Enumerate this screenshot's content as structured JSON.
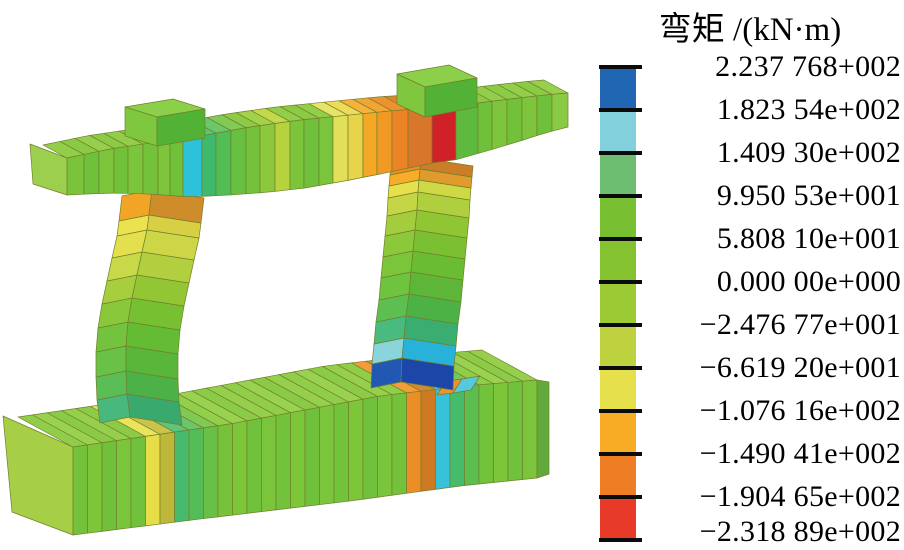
{
  "legend": {
    "title": "弯矩 /(kN·m)",
    "values": [
      "2.237 768+002",
      "1.823 54e+002",
      "1.409 30e+002",
      "9.950 53e+001",
      "5.808 10e+001",
      "0.000 00e+000",
      "−2.476 77e+001",
      "−6.619 20e+001",
      "−1.076 16e+002",
      "−1.490 41e+002",
      "−1.904 65e+002",
      "−2.318 89e+002"
    ],
    "band_colors": [
      "#2166b2",
      "#82d0dc",
      "#6ebe72",
      "#78c031",
      "#84c32f",
      "#9cca35",
      "#bdd23e",
      "#e6e04c",
      "#f8ab25",
      "#ef7d24",
      "#e83a28"
    ]
  },
  "chart_data": {
    "type": "heatmap",
    "title": "弯矩 /(kN·m)",
    "quantity": "弯矩",
    "unit": "kN·m",
    "figure": "3D finite-element frame model (foundation beam, two columns, top beam, two stub columns) contoured by bending moment",
    "colorbar": {
      "orientation": "vertical",
      "position": "right",
      "tick_labels": [
        "2.237 768+002",
        "1.823 54e+002",
        "1.409 30e+002",
        "9.950 53e+001",
        "5.808 10e+001",
        "0.000 00e+000",
        "−2.476 77e+001",
        "−6.619 20e+001",
        "−1.076 16e+002",
        "−1.490 41e+002",
        "−1.904 65e+002",
        "−2.318 89e+002"
      ],
      "tick_values": [
        223.7768,
        182.354,
        140.93,
        99.5053,
        58.081,
        0.0,
        -24.7677,
        -66.192,
        -107.616,
        -149.041,
        -190.465,
        -231.889
      ],
      "band_colors": [
        "#2166b2",
        "#82d0dc",
        "#6ebe72",
        "#78c031",
        "#84c32f",
        "#9cca35",
        "#bdd23e",
        "#e6e04c",
        "#f8ab25",
        "#ef7d24",
        "#e83a28"
      ]
    }
  },
  "model": {
    "edge_color": "#71802c",
    "foundation": {
      "end_cap_left": "#a6ce47",
      "end_strip_right": "#61aa3c",
      "top_patch_orange": "#ec9330",
      "top_patch_cyan": "#55cade",
      "front": [
        "#74c23c",
        "#7dc63a",
        "#6fc03a",
        "#7bc53c",
        "#70c13b",
        "#e6dd49",
        "#bdb73a",
        "#48ba6c",
        "#55bd58",
        "#69c046",
        "#76c33b",
        "#7dc63a",
        "#70c13b",
        "#7bc53c",
        "#72c23c",
        "#7dc63a",
        "#6fc03a",
        "#7bc53c",
        "#73c23c",
        "#7dc63a",
        "#70c13b",
        "#7bc53c",
        "#74c23c",
        "#ec8e26",
        "#cd7a22",
        "#38c2da",
        "#44bc6c",
        "#5cbe4e",
        "#72c23c",
        "#7dc63a",
        "#70c13b",
        "#7bc53c"
      ],
      "top": [
        "#90ce4a",
        "#99d150",
        "#8aca46",
        "#95cf4c",
        "#8ccb48",
        "#ece35c",
        "#cbc44c",
        "#5ec47e",
        "#6cc76a",
        "#80ca54",
        "#92cf4a",
        "#99d150",
        "#8ccb48",
        "#95cf4c",
        "#90ce4a",
        "#99d150",
        "#8aca46",
        "#95cf4c",
        "#90ce4a",
        "#99d150",
        "#8ccb48",
        "#95cf4c",
        "#90ce4a",
        "#f29d38",
        "#d8892e",
        "#5bcce0",
        "#5ac47a",
        "#74c75e",
        "#90ce4a",
        "#99d150",
        "#8ccb48",
        "#95cf4c"
      ]
    },
    "left_column": {
      "segments": [
        {
          "l": "#49b87d",
          "f": "#3aa96e"
        },
        {
          "l": "#5bbd55",
          "f": "#4cb147"
        },
        {
          "l": "#69c148",
          "f": "#59b63b"
        },
        {
          "l": "#74c33e",
          "f": "#64bb34"
        },
        {
          "l": "#88c83a",
          "f": "#77c032"
        },
        {
          "l": "#a6ce3e",
          "f": "#93c634"
        },
        {
          "l": "#c7d849",
          "f": "#b2cf3f"
        },
        {
          "l": "#e4df4f",
          "f": "#cdd646"
        },
        {
          "l": "#ece14f",
          "f": "#d8cf45"
        },
        {
          "l": "#f2a427",
          "f": "#cf8c2b"
        }
      ]
    },
    "right_column": {
      "segments": [
        {
          "l": "#2257b4",
          "f": "#1c46a8"
        },
        {
          "l": "#8ad4dc",
          "f": "#28b2da"
        },
        {
          "l": "#4abb7e",
          "f": "#3aae70"
        },
        {
          "l": "#5dbf52",
          "f": "#4db246"
        },
        {
          "l": "#6ec33f",
          "f": "#5db637"
        },
        {
          "l": "#7ac53a",
          "f": "#6abc33"
        },
        {
          "l": "#8cc93a",
          "f": "#7ac032"
        },
        {
          "l": "#a4cd3d",
          "f": "#90c634"
        },
        {
          "l": "#c4d646",
          "f": "#b0cf3e"
        },
        {
          "l": "#e6e04d",
          "f": "#cfd845"
        },
        {
          "l": "#f7ad28",
          "f": "#e19a2c"
        },
        {
          "l": "#ee8d23",
          "f": "#cc7d27"
        }
      ]
    },
    "beam": {
      "end_cap": "#9ccf4e",
      "front": [
        "#7ac43c",
        "#6fc03a",
        "#7cc53c",
        "#72c13a",
        "#7bc53c",
        "#74c23b",
        "#7dc63b",
        "#70c13a",
        "#2cc3da",
        "#3eb96e",
        "#52bc55",
        "#68c043",
        "#74c23b",
        "#8cc83c",
        "#b6d23f",
        "#7cc53a",
        "#6fc03a",
        "#7bc53c",
        "#e2e058",
        "#e8d44a",
        "#f5a826",
        "#f09a25",
        "#ec8425",
        "#d8772b",
        "#cf2127",
        "#5eba3e",
        "#6fc03a",
        "#7cc53c",
        "#72c13a",
        "#7cc53c",
        "#6fc03a",
        "#8bca44"
      ],
      "top": [
        "#92ce48",
        "#8aca44",
        "#95cf4c",
        "#8ccb46",
        "#93ce4a",
        "#8ccb46",
        "#95cf4c",
        "#8aca44",
        "#54cade",
        "#5cc482",
        "#6cc76a",
        "#82ca56",
        "#8ccb46",
        "#a2d14a",
        "#c4d84c",
        "#93ce4a",
        "#8aca44",
        "#93ce4a",
        "#e8e468",
        "#eedc58",
        "#f6b23a",
        "#f2a434",
        "#ee9230",
        "#e0832e",
        "#d2452e",
        "#74c44e",
        "#8aca44",
        "#93ce4a",
        "#8ccb46",
        "#93ce4a",
        "#8aca44",
        "#98d04e"
      ]
    },
    "cubes": {
      "left_cube": {
        "left": "#7ec73e",
        "front": "#52b236",
        "top": "#8cd04a"
      },
      "right_cube": {
        "left": "#7ec73e",
        "front": "#52b236",
        "top": "#8cd04a"
      }
    }
  }
}
